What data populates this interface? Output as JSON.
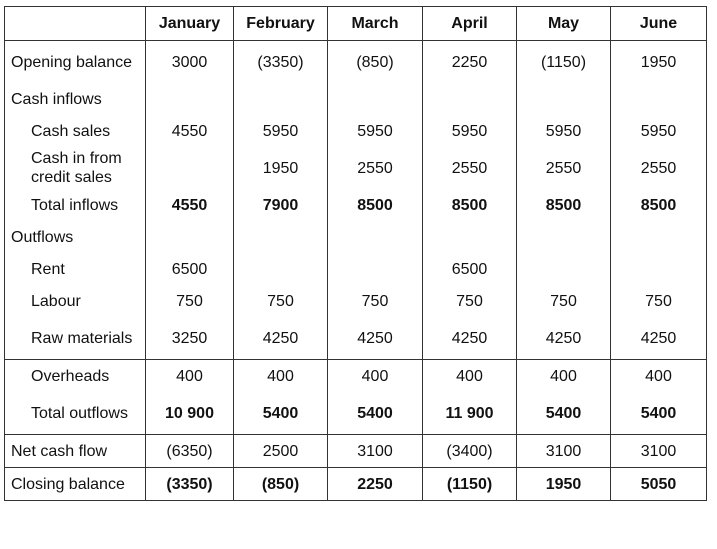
{
  "table": {
    "columns": [
      "",
      "January",
      "February",
      "March",
      "April",
      "May",
      "June"
    ],
    "rows": [
      {
        "label": "Opening balance",
        "values": [
          "3000",
          "(3350)",
          "(850)",
          "2250",
          "(1150)",
          "1950"
        ]
      },
      {
        "label": "Cash inflows",
        "values": [
          "",
          "",
          "",
          "",
          "",
          ""
        ]
      },
      {
        "label": "Cash sales",
        "values": [
          "4550",
          "5950",
          "5950",
          "5950",
          "5950",
          "5950"
        ]
      },
      {
        "label": "Cash in from credit sales",
        "values": [
          "",
          "1950",
          "2550",
          "2550",
          "2550",
          "2550"
        ]
      },
      {
        "label": "Total inflows",
        "values": [
          "4550",
          "7900",
          "8500",
          "8500",
          "8500",
          "8500"
        ]
      },
      {
        "label": "Outflows",
        "values": [
          "",
          "",
          "",
          "",
          "",
          ""
        ]
      },
      {
        "label": "Rent",
        "values": [
          "6500",
          "",
          "",
          "6500",
          "",
          ""
        ]
      },
      {
        "label": "Labour",
        "values": [
          "750",
          "750",
          "750",
          "750",
          "750",
          "750"
        ]
      },
      {
        "label": "Raw materials",
        "values": [
          "3250",
          "4250",
          "4250",
          "4250",
          "4250",
          "4250"
        ]
      },
      {
        "label": "Overheads",
        "values": [
          "400",
          "400",
          "400",
          "400",
          "400",
          "400"
        ]
      },
      {
        "label": "Total outflows",
        "values": [
          "10 900",
          "5400",
          "5400",
          "11 900",
          "5400",
          "5400"
        ]
      },
      {
        "label": "Net cash flow",
        "values": [
          "(6350)",
          "2500",
          "3100",
          "(3400)",
          "3100",
          "3100"
        ]
      },
      {
        "label": "Closing balance",
        "values": [
          "(3350)",
          "(850)",
          "2250",
          "(1150)",
          "1950",
          "5050"
        ]
      }
    ]
  }
}
